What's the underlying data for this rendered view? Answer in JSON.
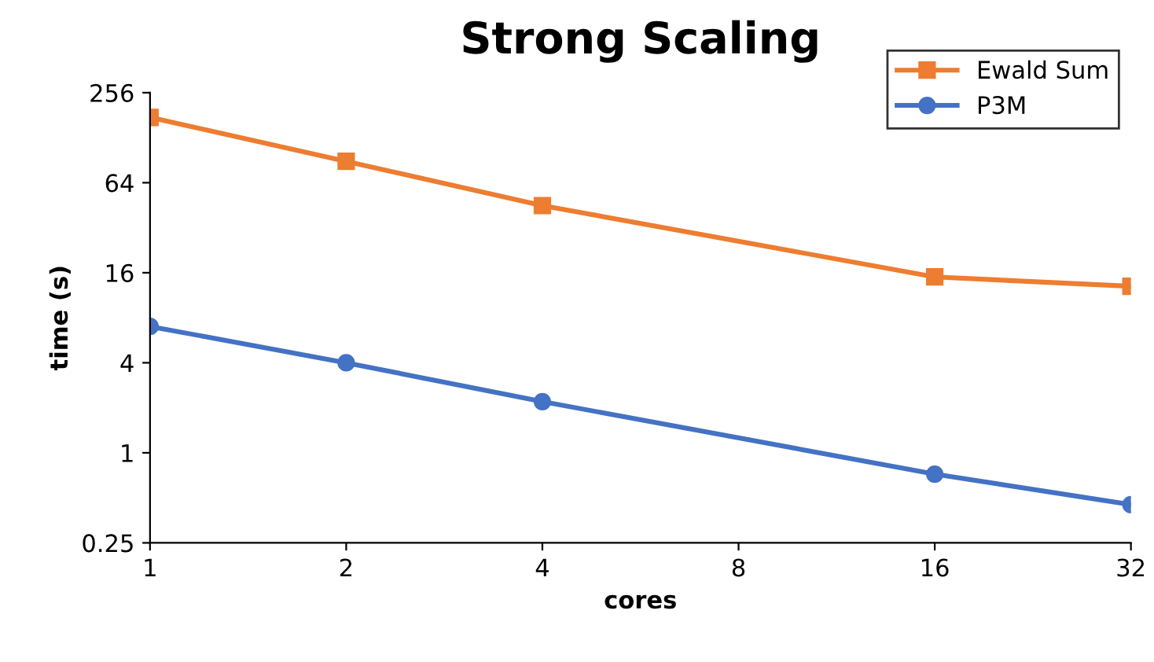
{
  "chart_data": {
    "type": "line",
    "title": "Strong Scaling",
    "xlabel": "cores",
    "ylabel": "time (s)",
    "log": "xy",
    "xlim": [
      1,
      32
    ],
    "xticks": [
      1,
      2,
      4,
      8,
      16,
      32
    ],
    "ylim": [
      0.25,
      256
    ],
    "yticks": [
      0.25,
      1,
      4,
      16,
      64,
      256
    ],
    "grid": false,
    "legend": "top right",
    "x": [
      1,
      2,
      4,
      16,
      32
    ],
    "series": [
      {
        "name": "Ewald Sum",
        "color": "#ed7d31",
        "marker": "square",
        "values": [
          175,
          89,
          45,
          15,
          13
        ]
      },
      {
        "name": "P3M",
        "color": "#4472c4",
        "marker": "circle",
        "values": [
          7,
          4,
          2.2,
          0.72,
          0.45
        ]
      }
    ]
  }
}
